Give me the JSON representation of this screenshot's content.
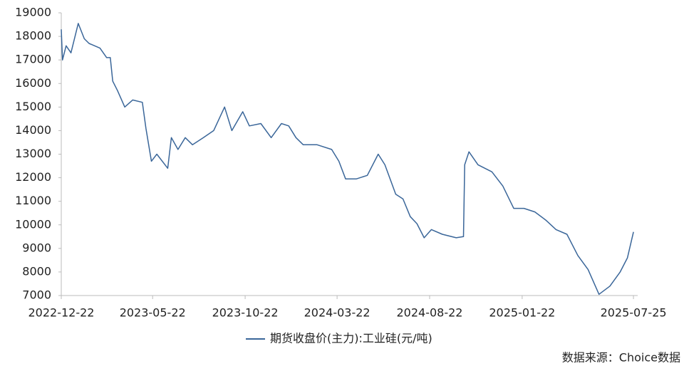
{
  "chart_data": {
    "type": "line",
    "x": [
      "2022-12-22",
      "2022-12-24",
      "2022-12-30",
      "2023-01-07",
      "2023-01-19",
      "2023-01-29",
      "2023-02-06",
      "2023-02-24",
      "2023-03-07",
      "2023-03-13",
      "2023-03-17",
      "2023-03-25",
      "2023-04-06",
      "2023-04-19",
      "2023-05-05",
      "2023-05-11",
      "2023-05-20",
      "2023-05-29",
      "2023-06-16",
      "2023-06-22",
      "2023-07-03",
      "2023-07-15",
      "2023-07-27",
      "2023-08-14",
      "2023-08-31",
      "2023-09-18",
      "2023-09-30",
      "2023-10-18",
      "2023-10-29",
      "2023-11-17",
      "2023-12-04",
      "2023-12-21",
      "2024-01-02",
      "2024-01-14",
      "2024-01-26",
      "2024-02-18",
      "2024-03-13",
      "2024-03-25",
      "2024-04-05",
      "2024-04-23",
      "2024-05-11",
      "2024-05-29",
      "2024-06-09",
      "2024-06-27",
      "2024-07-09",
      "2024-07-21",
      "2024-08-01",
      "2024-08-13",
      "2024-08-25",
      "2024-09-12",
      "2024-10-05",
      "2024-10-17",
      "2024-10-19",
      "2024-10-26",
      "2024-11-10",
      "2024-12-03",
      "2024-12-21",
      "2025-01-08",
      "2025-01-25",
      "2025-02-12",
      "2025-03-02",
      "2025-03-19",
      "2025-04-06",
      "2025-04-24",
      "2025-05-11",
      "2025-05-29",
      "2025-06-16",
      "2025-07-03",
      "2025-07-15",
      "2025-07-25"
    ],
    "series": [
      {
        "name": "期货收盘价(主力):工业硅(元/吨)",
        "color": "#3a6699",
        "values": [
          18300,
          17000,
          17600,
          17300,
          18550,
          17900,
          17700,
          17500,
          17100,
          17100,
          16100,
          15700,
          15000,
          15300,
          15200,
          14100,
          12700,
          13000,
          12400,
          13700,
          13200,
          13700,
          13400,
          13700,
          14000,
          15000,
          14000,
          14800,
          14200,
          14300,
          13700,
          14300,
          14200,
          13700,
          13400,
          13400,
          13200,
          12700,
          11950,
          11950,
          12100,
          13000,
          12550,
          11300,
          11100,
          10350,
          10050,
          9450,
          9800,
          9600,
          9450,
          9500,
          12550,
          13100,
          12550,
          12250,
          11650,
          10700,
          10700,
          10550,
          10200,
          9800,
          9600,
          8700,
          8100,
          7050,
          7400,
          8000,
          8600,
          9700
        ]
      }
    ],
    "xlim": [
      "2022-12-22",
      "2025-08-01"
    ],
    "xticks": [
      "2022-12-22",
      "2023-05-22",
      "2023-10-22",
      "2024-03-22",
      "2024-08-22",
      "2025-01-22",
      "2025-07-25"
    ],
    "ylim": [
      7000,
      19000
    ],
    "yticks": [
      7000,
      8000,
      9000,
      10000,
      11000,
      12000,
      13000,
      14000,
      15000,
      16000,
      17000,
      18000,
      19000
    ],
    "legend": "bottom",
    "source": "数据来源：Choice数据"
  }
}
